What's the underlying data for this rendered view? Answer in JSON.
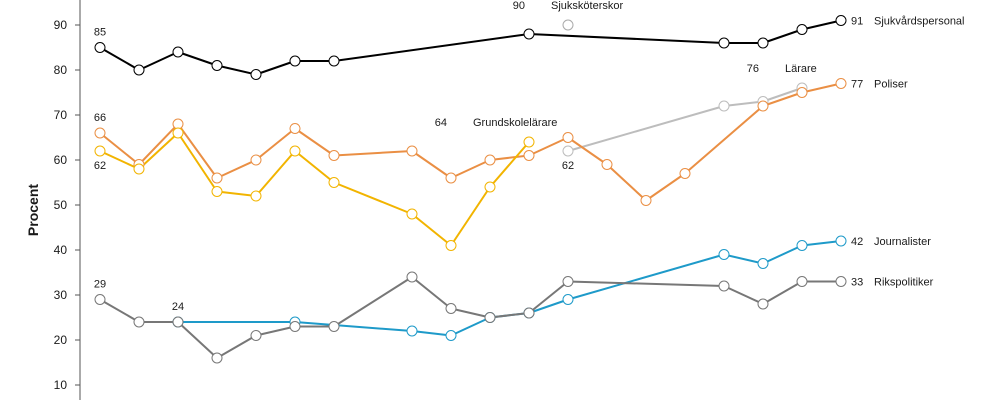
{
  "chart_data": {
    "type": "line",
    "ylabel": "Procent",
    "ylim": [
      10,
      90
    ],
    "yticks": [
      10,
      20,
      30,
      40,
      50,
      60,
      70,
      80,
      90
    ],
    "grid": false,
    "series": [
      {
        "name": "Sjukvårdspersonal",
        "color": "#000000",
        "points": [
          [
            1,
            85
          ],
          [
            2,
            80
          ],
          [
            3,
            84
          ],
          [
            4,
            81
          ],
          [
            5,
            79
          ],
          [
            6,
            82
          ],
          [
            7,
            82
          ],
          [
            12,
            88
          ],
          [
            17,
            86
          ],
          [
            18,
            86
          ],
          [
            19,
            89
          ],
          [
            20,
            91
          ]
        ]
      },
      {
        "name": "Sjuksköterskor",
        "color": "#aaaaaa",
        "points": [
          [
            13,
            90
          ]
        ]
      },
      {
        "name": "Lärare",
        "color": "#bdbdbd",
        "points": [
          [
            13,
            62
          ],
          [
            17,
            72
          ],
          [
            18,
            73
          ],
          [
            19,
            76
          ]
        ]
      },
      {
        "name": "Poliser",
        "color": "#ea8f44",
        "points": [
          [
            1,
            66
          ],
          [
            2,
            59
          ],
          [
            3,
            68
          ],
          [
            4,
            56
          ],
          [
            5,
            60
          ],
          [
            6,
            67
          ],
          [
            7,
            61
          ],
          [
            9,
            62
          ],
          [
            10,
            56
          ],
          [
            11,
            60
          ],
          [
            12,
            61
          ],
          [
            13,
            65
          ],
          [
            14,
            59
          ],
          [
            15,
            51
          ],
          [
            16,
            57
          ],
          [
            18,
            72
          ],
          [
            19,
            75
          ],
          [
            20,
            77
          ]
        ]
      },
      {
        "name": "Grundskolelärare",
        "color": "#f2b400",
        "points": [
          [
            1,
            62
          ],
          [
            2,
            58
          ],
          [
            3,
            66
          ],
          [
            4,
            53
          ],
          [
            5,
            52
          ],
          [
            6,
            62
          ],
          [
            7,
            55
          ],
          [
            9,
            48
          ],
          [
            10,
            41
          ],
          [
            11,
            54
          ],
          [
            12,
            64
          ]
        ]
      },
      {
        "name": "Journalister",
        "color": "#1e9ac9",
        "points": [
          [
            3,
            24
          ],
          [
            6,
            24
          ],
          [
            9,
            22
          ],
          [
            10,
            21
          ],
          [
            11,
            25
          ],
          [
            12,
            26
          ],
          [
            13,
            29
          ],
          [
            17,
            39
          ],
          [
            18,
            37
          ],
          [
            19,
            41
          ],
          [
            20,
            42
          ]
        ]
      },
      {
        "name": "Rikspolitiker",
        "color": "#777777",
        "points": [
          [
            1,
            29
          ],
          [
            2,
            24
          ],
          [
            3,
            24
          ],
          [
            4,
            16
          ],
          [
            5,
            21
          ],
          [
            6,
            23
          ],
          [
            7,
            23
          ],
          [
            9,
            34
          ],
          [
            10,
            27
          ],
          [
            11,
            25
          ],
          [
            12,
            26
          ],
          [
            13,
            33
          ],
          [
            17,
            32
          ],
          [
            18,
            28
          ],
          [
            19,
            33
          ],
          [
            20,
            33
          ]
        ]
      }
    ],
    "annotations": [
      {
        "text": "85",
        "x": 1,
        "y": 85,
        "pos": "above"
      },
      {
        "text": "66",
        "x": 1,
        "y": 66,
        "pos": "above"
      },
      {
        "text": "62",
        "x": 1,
        "y": 62,
        "pos": "below"
      },
      {
        "text": "29",
        "x": 1,
        "y": 29,
        "pos": "above"
      },
      {
        "text": "24",
        "x": 3,
        "y": 24,
        "pos": "above"
      },
      {
        "text": "90",
        "x": 12,
        "y": 90,
        "pos": "left"
      },
      {
        "text": "Sjuksköterskor",
        "x": 13,
        "y": 90,
        "pos": "label-above"
      },
      {
        "text": "64",
        "x": 10,
        "y": 64,
        "pos": "left"
      },
      {
        "text": "Grundskolelärare",
        "x": 11,
        "y": 64,
        "pos": "label-above"
      },
      {
        "text": "62",
        "x": 13,
        "y": 62,
        "pos": "below"
      },
      {
        "text": "76",
        "x": 18,
        "y": 76,
        "pos": "left"
      },
      {
        "text": "Lärare",
        "x": 19,
        "y": 76,
        "pos": "label-above"
      },
      {
        "text": "91",
        "x": 20,
        "y": 91,
        "pos": "right"
      },
      {
        "text": "Sjukvårdspersonal",
        "x": 20,
        "y": 91,
        "pos": "label-right"
      },
      {
        "text": "77",
        "x": 20,
        "y": 77,
        "pos": "right"
      },
      {
        "text": "Poliser",
        "x": 20,
        "y": 77,
        "pos": "label-right"
      },
      {
        "text": "42",
        "x": 20,
        "y": 42,
        "pos": "right"
      },
      {
        "text": "Journalister",
        "x": 20,
        "y": 42,
        "pos": "label-right"
      },
      {
        "text": "33",
        "x": 20,
        "y": 33,
        "pos": "right"
      },
      {
        "text": "Rikspolitiker",
        "x": 20,
        "y": 33,
        "pos": "label-right"
      }
    ]
  }
}
